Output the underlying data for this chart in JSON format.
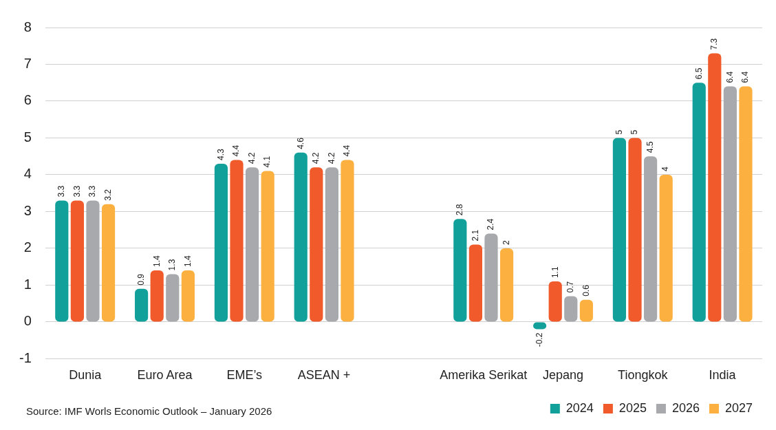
{
  "chart_data": {
    "type": "bar",
    "categories": [
      "Dunia",
      "Euro Area",
      "EME’s",
      "ASEAN +",
      null,
      "Amerika Serikat",
      "Jepang",
      "Tiongkok",
      "India"
    ],
    "series": [
      {
        "name": "2024",
        "color": "#12a19a",
        "values": [
          3.3,
          0.9,
          4.3,
          4.6,
          null,
          2.8,
          -0.2,
          5,
          6.5
        ]
      },
      {
        "name": "2025",
        "color": "#f15a2b",
        "values": [
          3.3,
          1.4,
          4.4,
          4.2,
          null,
          2.1,
          1.1,
          5,
          7.3
        ]
      },
      {
        "name": "2026",
        "color": "#a7a9ac",
        "values": [
          3.3,
          1.3,
          4.2,
          4.2,
          null,
          2.4,
          0.7,
          4.5,
          6.4
        ]
      },
      {
        "name": "2027",
        "color": "#fbb040",
        "values": [
          3.2,
          1.4,
          4.1,
          4.4,
          null,
          2,
          0.6,
          4,
          6.4
        ]
      }
    ],
    "ylim": [
      -1,
      8
    ],
    "yticks": [
      -1,
      0,
      1,
      2,
      3,
      4,
      5,
      6,
      7,
      8
    ],
    "grid": "y",
    "legend": "bottom right",
    "data_labels": true,
    "annotations": [
      "Source: IMF Worls Economic Outlook – January 2026"
    ]
  }
}
